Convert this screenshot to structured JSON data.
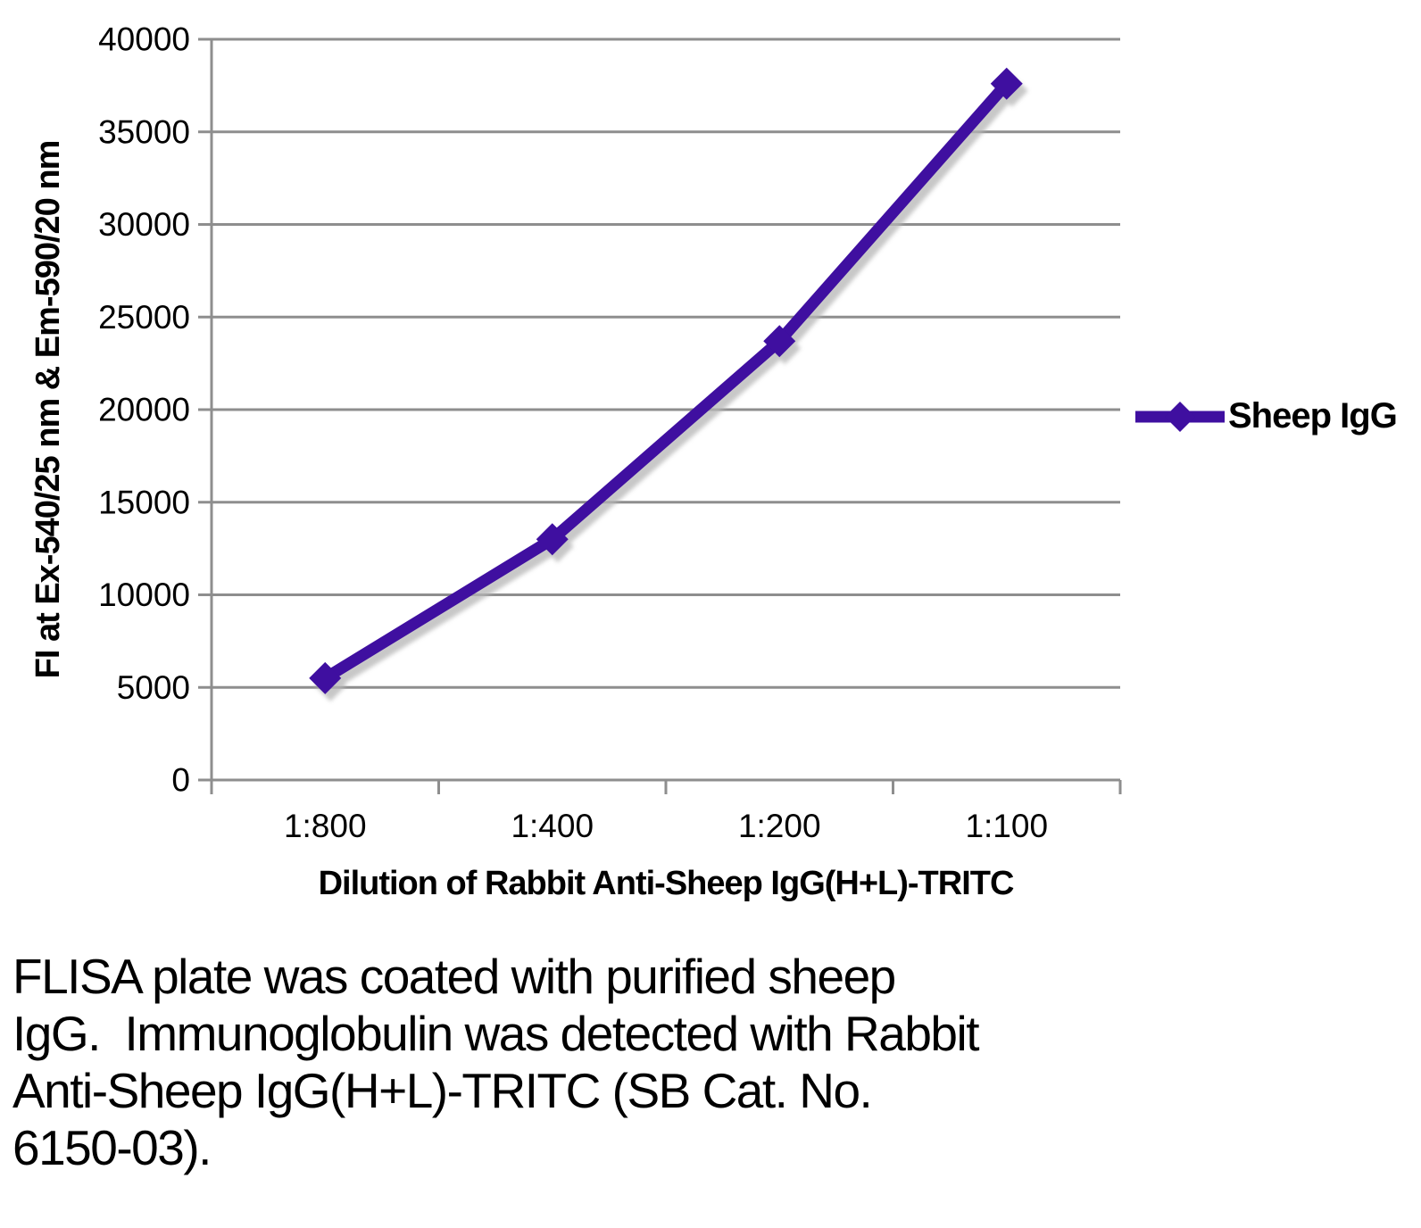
{
  "chart_data": {
    "type": "line",
    "categories": [
      "1:800",
      "1:400",
      "1:200",
      "1:100"
    ],
    "series": [
      {
        "name": "Sheep IgG",
        "values": [
          5500,
          13000,
          23700,
          37600
        ],
        "color": "#3f0fa0",
        "marker": "diamond"
      }
    ],
    "xlabel": "Dilution of Rabbit Anti-Sheep IgG(H+L)-TRITC",
    "ylabel": "FI at Ex-540/25 nm & Em-590/20 nm",
    "ylim": [
      0,
      40000
    ],
    "yticks": [
      0,
      5000,
      10000,
      15000,
      20000,
      25000,
      30000,
      35000,
      40000
    ],
    "grid": true,
    "legend_position": "right",
    "gridline_color": "#8e8e8e",
    "axis_color": "#8e8e8e",
    "shadow_color": "#b5b5b5",
    "tick_label_color": "#000000"
  },
  "legend": {
    "label": "Sheep IgG"
  },
  "caption": {
    "lines": [
      "FLISA plate was coated with purified sheep",
      "IgG.  Immunoglobulin was detected with Rabbit",
      "Anti-Sheep IgG(H+L)-TRITC (SB Cat. No.",
      "6150-03)."
    ],
    "text": "FLISA plate was coated with purified sheep IgG.  Immunoglobulin was detected with Rabbit Anti-Sheep IgG(H+L)-TRITC (SB Cat. No. 6150-03)."
  }
}
